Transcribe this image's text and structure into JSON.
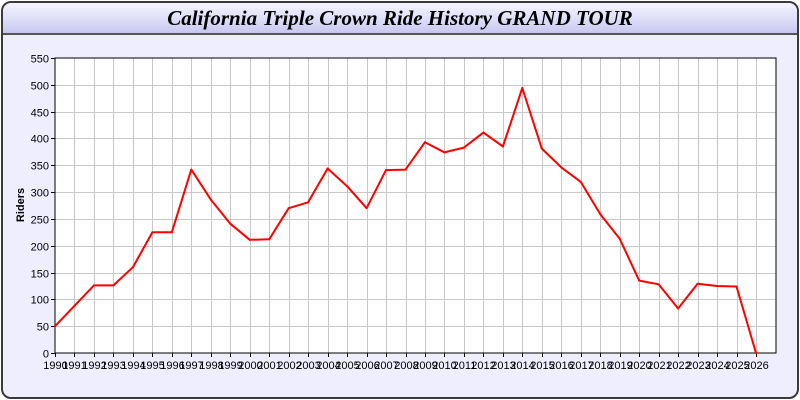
{
  "chart_data": {
    "type": "line",
    "title": "California Triple Crown Ride History GRAND TOUR",
    "xlabel": "",
    "ylabel": "Riders",
    "ylim": [
      0,
      550
    ],
    "yticks": [
      0,
      50,
      100,
      150,
      200,
      250,
      300,
      350,
      400,
      450,
      500,
      550
    ],
    "grid": true,
    "x": [
      "1990",
      "1991",
      "1992",
      "1993",
      "1994",
      "1995",
      "1996",
      "1997",
      "1998",
      "1999",
      "2000",
      "2001",
      "2002",
      "2003",
      "2004",
      "2005",
      "2006",
      "2007",
      "2008",
      "2009",
      "2010",
      "2011",
      "2012",
      "2013",
      "2014",
      "2015",
      "2016",
      "2017",
      "2018",
      "2019",
      "2020",
      "2021",
      "2022",
      "2023",
      "2024",
      "2025",
      "2026"
    ],
    "series": [
      {
        "color": "#ff0000",
        "values": [
          50,
          88,
          126,
          126,
          160,
          225,
          225,
          342,
          286,
          241,
          211,
          212,
          270,
          281,
          344,
          311,
          270,
          341,
          342,
          393,
          374,
          383,
          411,
          385,
          494,
          381,
          346,
          319,
          259,
          213,
          135,
          128,
          83,
          129,
          125,
          124,
          0
        ]
      }
    ]
  }
}
